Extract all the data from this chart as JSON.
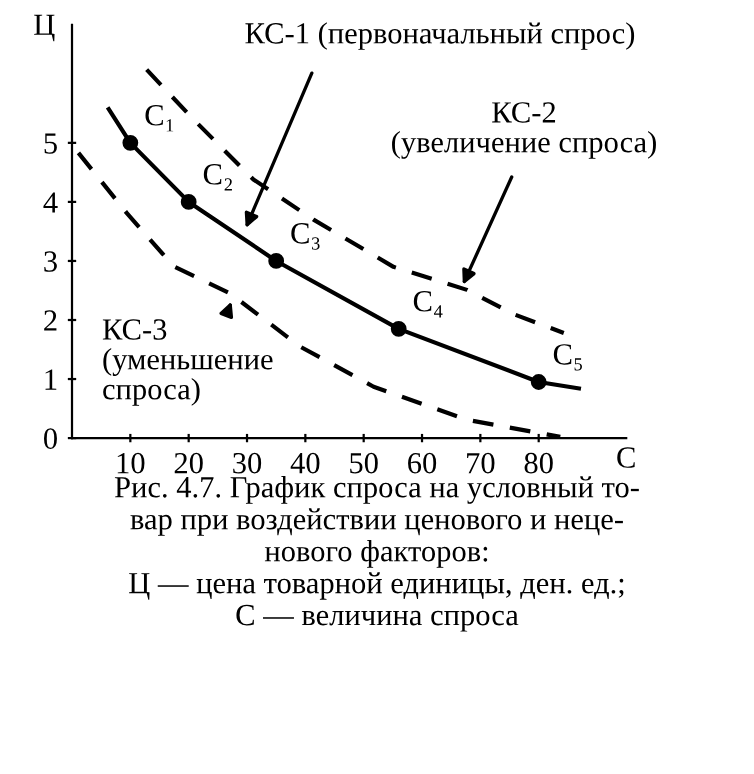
{
  "chart_data": {
    "type": "line",
    "xlabel": "С",
    "ylabel": "Ц",
    "series": [
      {
        "color": "#000000",
        "line_style": "solid",
        "marker": "none",
        "x": [
          6.3,
          10,
          20,
          35,
          56,
          80,
          86.9
        ],
        "values": [
          5.57,
          5,
          4,
          3,
          1.85,
          0.95,
          0.84
        ]
      },
      {
        "color": "#000000",
        "line_style": "dashed",
        "marker": "none",
        "x": [
          12.8,
          20.8,
          31.1,
          41.4,
          55.1,
          67.7,
          75.7,
          84.3
        ],
        "values": [
          6.24,
          5.4,
          4.38,
          3.7,
          2.9,
          2.51,
          2.1,
          1.78
        ]
      },
      {
        "color": "#000000",
        "line_style": "dashed",
        "marker": "none",
        "x": [
          1.1,
          9.4,
          17.4,
          27.1,
          39.1,
          51.7,
          67.7,
          83.7
        ],
        "values": [
          4.83,
          3.81,
          2.91,
          2.45,
          1.55,
          0.87,
          0.31,
          0.02
        ]
      },
      {
        "type": "scatter",
        "color": "#000000",
        "marker": "circle",
        "x": [
          10,
          20,
          35,
          56,
          80
        ],
        "values": [
          5,
          4,
          3,
          1.85,
          0.95
        ]
      }
    ],
    "xlim": [
      0,
      95
    ],
    "ylim": [
      0,
      7
    ],
    "xticks": [
      10,
      20,
      30,
      40,
      50,
      60,
      70,
      80
    ],
    "yticks": [
      0,
      1,
      2,
      3,
      4,
      5
    ],
    "grid": false,
    "legend": false,
    "annotations": [
      {
        "text": "КС-1 (первоначальный спрос)",
        "x": 29.4,
        "y": 3.47
      },
      {
        "text": "КС-2\n(увеличение спроса)",
        "x": 66.6,
        "y": 2.51
      },
      {
        "text": "КС-3\n(уменьшение\nспроса)",
        "x": 27.7,
        "y": 2.4
      },
      {
        "text": "C₁",
        "x": 10,
        "y": 5
      },
      {
        "text": "C₂",
        "x": 20,
        "y": 4
      },
      {
        "text": "C₃",
        "x": 35,
        "y": 3
      },
      {
        "text": "C₄",
        "x": 56,
        "y": 1.85
      },
      {
        "text": "C₅",
        "x": 80,
        "y": 0.95
      },
      "Рис. 4.7. График спроса на условный то-\nвар при воздействии ценового и неце-\nнового факторов:\nЦ — цена товарной единицы, ден. ед.;\nС — величина спроса"
    ]
  }
}
